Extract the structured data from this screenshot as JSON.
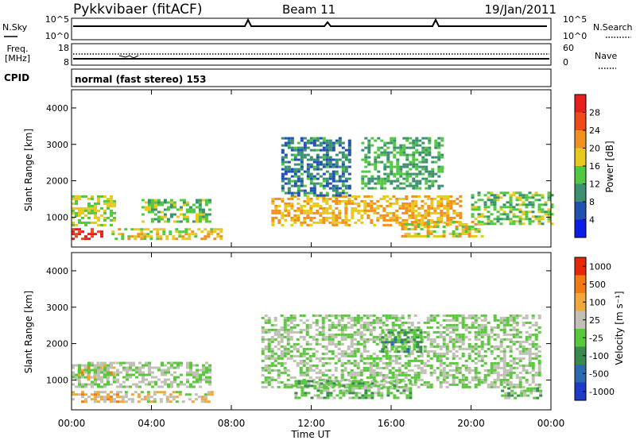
{
  "header": {
    "station": "Pykkvibaer (fitACF)",
    "beam": "Beam 11",
    "date": "19/Jan/2011"
  },
  "strip_labels": {
    "nsky": "N.Sky",
    "nsearch": "N.Search",
    "freq_line1": "Freq.",
    "freq_line2": "[MHz]",
    "nave": "Nave",
    "cpid": "CPID",
    "mode": "normal (fast stereo) 153"
  },
  "noise_axis": {
    "left_ticks": [
      "10^5",
      "10^0"
    ],
    "right_ticks": [
      "10^5",
      "10^0"
    ]
  },
  "freq_axis": {
    "left_ticks": [
      "18",
      "8"
    ],
    "right_ticks": [
      "60",
      "0"
    ]
  },
  "time_axis": {
    "ticks": [
      "00:00",
      "04:00",
      "08:00",
      "12:00",
      "16:00",
      "20:00",
      "00:00"
    ],
    "label": "Time UT"
  },
  "chart_data": [
    {
      "type": "heatmap",
      "name": "power",
      "ylabel": "Slant Range [km]",
      "ylim": [
        180,
        4500
      ],
      "yticks": [
        "1000",
        "2000",
        "3000",
        "4000"
      ],
      "colorbar_label": "Power [dB]",
      "colorbar_ticks": [
        "4",
        "8",
        "12",
        "16",
        "20",
        "24",
        "28"
      ],
      "colorbar_colors": [
        "#0b1de6",
        "#2050b0",
        "#3a9070",
        "#50c840",
        "#e6c81e",
        "#f09020",
        "#f04a18",
        "#e61e1e"
      ],
      "range": [
        0,
        32
      ],
      "echo_bands": [
        {
          "t0": 0.0,
          "t1": 1.5,
          "r_lo": 400,
          "r_hi": 700,
          "v": 29
        },
        {
          "t0": 0.0,
          "t1": 2.2,
          "r_lo": 800,
          "r_hi": 1600,
          "v": 16
        },
        {
          "t0": 2.0,
          "t1": 7.5,
          "r_lo": 400,
          "r_hi": 700,
          "v": 18
        },
        {
          "t0": 3.5,
          "t1": 7.0,
          "r_lo": 850,
          "r_hi": 1500,
          "v": 14
        },
        {
          "t0": 10.0,
          "t1": 19.5,
          "r_lo": 800,
          "r_hi": 1600,
          "v": 20
        },
        {
          "t0": 10.5,
          "t1": 14.0,
          "r_lo": 1600,
          "r_hi": 3200,
          "v": 9
        },
        {
          "t0": 14.5,
          "t1": 18.5,
          "r_lo": 1800,
          "r_hi": 3200,
          "v": 12
        },
        {
          "t0": 16.5,
          "t1": 20.5,
          "r_lo": 500,
          "r_hi": 900,
          "v": 18
        },
        {
          "t0": 20.0,
          "t1": 24.0,
          "r_lo": 800,
          "r_hi": 1700,
          "v": 14
        }
      ]
    },
    {
      "type": "heatmap",
      "name": "velocity",
      "ylabel": "Slant Range [km]",
      "ylim": [
        180,
        4500
      ],
      "yticks": [
        "1000",
        "2000",
        "3000",
        "4000"
      ],
      "colorbar_label": "Velocity [m s⁻¹]",
      "colorbar_ticks": [
        "1000",
        "500",
        "100",
        "25",
        "-25",
        "-100",
        "-500",
        "-1000"
      ],
      "colorbar_colors": [
        "#1e3cc8",
        "#2b6ab0",
        "#3a8a50",
        "#5ac83c",
        "#c0c0b4",
        "#f0a83c",
        "#f07a14",
        "#e6280a"
      ],
      "range": [
        -1000,
        1000
      ],
      "echo_bands": [
        {
          "t0": 0.0,
          "t1": 2.5,
          "r_lo": 400,
          "r_hi": 700,
          "v": -300
        },
        {
          "t0": 0.3,
          "t1": 2.2,
          "r_lo": 1000,
          "r_hi": 1500,
          "v": -300
        },
        {
          "t0": 0.0,
          "t1": 7.0,
          "r_lo": 800,
          "r_hi": 1500,
          "v": 0
        },
        {
          "t0": 2.5,
          "t1": 7.0,
          "r_lo": 400,
          "r_hi": 700,
          "v": -200
        },
        {
          "t0": 9.5,
          "t1": 23.5,
          "r_lo": 800,
          "r_hi": 2800,
          "v": 0
        },
        {
          "t0": 11.0,
          "t1": 17.0,
          "r_lo": 500,
          "r_hi": 1000,
          "v": 120
        },
        {
          "t0": 15.5,
          "t1": 17.5,
          "r_lo": 1800,
          "r_hi": 2400,
          "v": 300
        },
        {
          "t0": 21.5,
          "t1": 23.5,
          "r_lo": 500,
          "r_hi": 800,
          "v": 100
        }
      ]
    }
  ]
}
